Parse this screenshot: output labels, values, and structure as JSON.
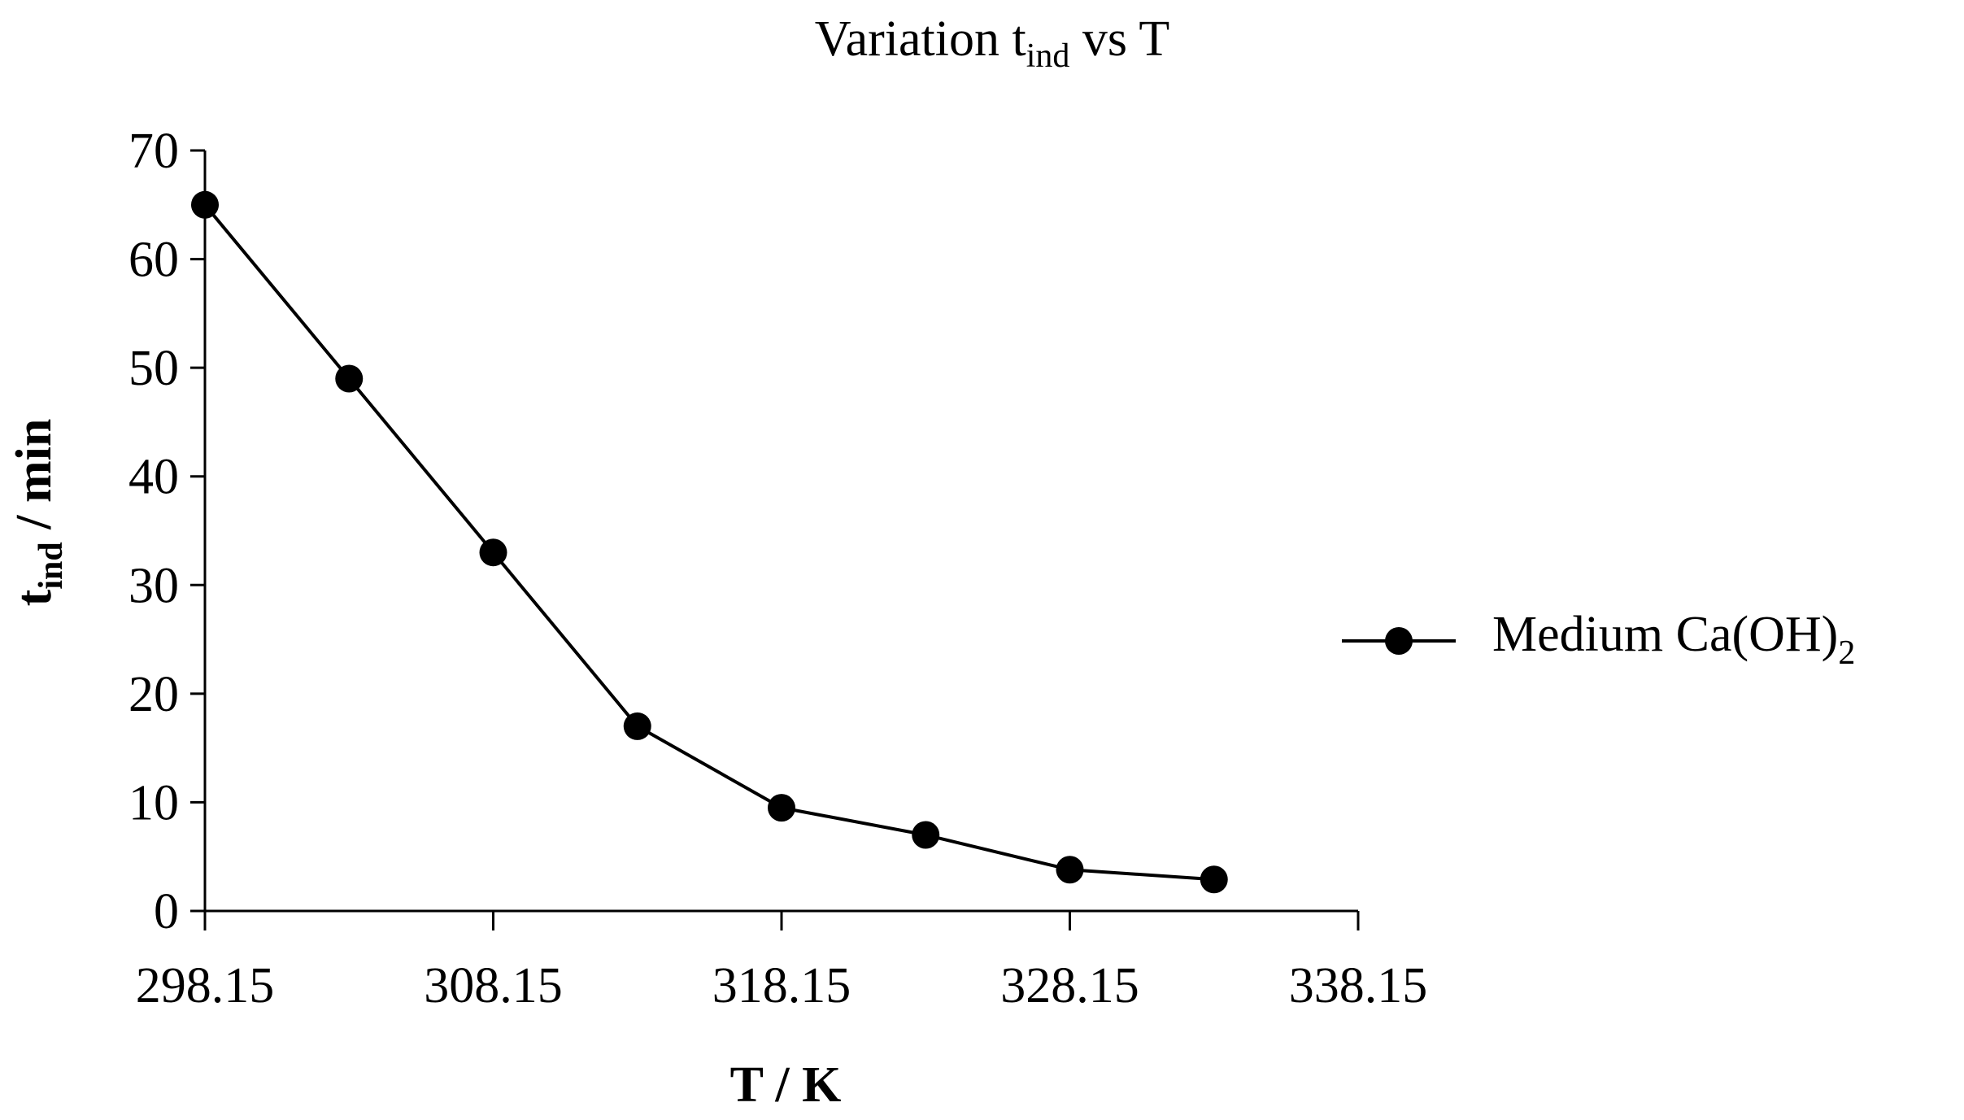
{
  "chart_data": {
    "type": "line",
    "title": {
      "main": "Variation t",
      "sub": "ind",
      "rest": " vs T"
    },
    "xlabel": "T / K",
    "ylabel": {
      "main": "t",
      "sub": "ind",
      "rest": " / min"
    },
    "xlim": [
      298.15,
      338.15
    ],
    "ylim": [
      0,
      70
    ],
    "x_ticks": [
      298.15,
      308.15,
      318.15,
      328.15,
      338.15
    ],
    "x_tick_labels": [
      "298.15",
      "308.15",
      "318.15",
      "328.15",
      "338.15"
    ],
    "y_ticks": [
      0,
      10,
      20,
      30,
      40,
      50,
      60,
      70
    ],
    "y_tick_labels": [
      "0",
      "10",
      "20",
      "30",
      "40",
      "50",
      "60",
      "70"
    ],
    "grid": false,
    "legend_position": "right",
    "series": [
      {
        "name": {
          "main": "Medium Ca(OH)",
          "sub": "2"
        },
        "color": "#000000",
        "marker": "circle",
        "x": [
          298.15,
          303.15,
          308.15,
          313.15,
          318.15,
          323.15,
          328.15,
          333.15
        ],
        "y": [
          65,
          49,
          33,
          17,
          9.5,
          7,
          3.8,
          2.9
        ]
      }
    ]
  }
}
